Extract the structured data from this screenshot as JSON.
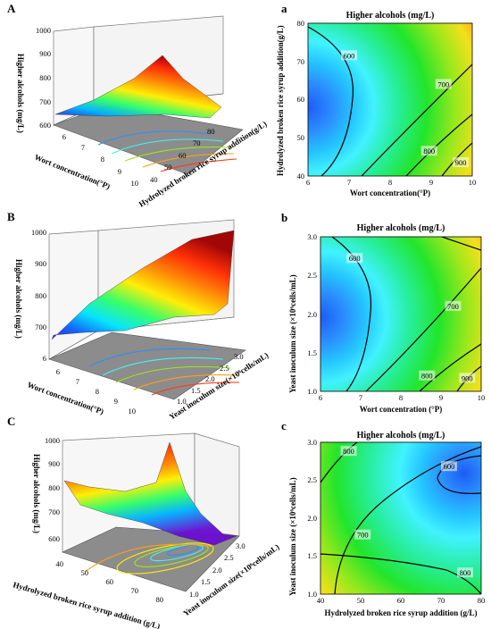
{
  "panel_letters": [
    "A",
    "a",
    "B",
    "b",
    "C",
    "c"
  ],
  "colors": {
    "surface_scale": [
      "#2a1bd6",
      "#0b63ff",
      "#00b3ff",
      "#00e5ff",
      "#33ff66",
      "#ccff00",
      "#ffee00",
      "#ff8800",
      "#ff2a00",
      "#c00000"
    ],
    "contour_scale": [
      "#1d5cf2",
      "#2b8eff",
      "#24c4ff",
      "#41f2ff",
      "#27ee9a",
      "#22e52b",
      "#9ae81c",
      "#f3e01c",
      "#ff9e1a",
      "#ff3a14"
    ],
    "floor": "#8c8c8c",
    "contour_line": "#000000"
  },
  "chart_data": [
    {
      "panel": "A",
      "type": "surface",
      "x": {
        "label": "Wort concentration(°P)",
        "range": [
          6,
          10
        ],
        "ticks": [
          6,
          7,
          8,
          9,
          10
        ]
      },
      "y": {
        "label": "Hydrolyzed broken rice syrup addition(g/L)",
        "range": [
          40,
          80
        ],
        "ticks": [
          40,
          50,
          60,
          70,
          80
        ]
      },
      "z": {
        "label": "Higher alcohols (mg/L)",
        "range": [
          600,
          1000
        ],
        "ticks": [
          600,
          700,
          800,
          900,
          1000
        ]
      }
    },
    {
      "panel": "a",
      "type": "contour",
      "title": "Higher alcohols (mg/L)",
      "xlabel": "Wort concentration(°P)",
      "ylabel": "Hydrolyzed broken rice syrup addition(g/L)",
      "xlim": [
        6,
        10
      ],
      "ylim": [
        40,
        80
      ],
      "xticks": [
        "6",
        "7",
        "8",
        "9",
        "10"
      ],
      "yticks": [
        "40",
        "50",
        "60",
        "70",
        "80"
      ],
      "levels": [
        600,
        700,
        800,
        900
      ],
      "contour_labels": [
        {
          "text": "600",
          "x": 7.0,
          "y": 71.5
        },
        {
          "text": "700",
          "x": 9.3,
          "y": 64
        },
        {
          "text": "800",
          "x": 8.95,
          "y": 46.5
        },
        {
          "text": "900",
          "x": 9.72,
          "y": 43.5
        }
      ]
    },
    {
      "panel": "B",
      "type": "surface",
      "x": {
        "label": "Wort concentration(°P)",
        "range": [
          6,
          10
        ],
        "ticks": [
          6,
          7,
          8,
          9,
          10
        ]
      },
      "y": {
        "label": "Yeast inoculum size(×10⁶cells/mL)",
        "range": [
          1.0,
          3.0
        ],
        "ticks": [
          1.0,
          1.5,
          2.0,
          2.5,
          3.0
        ]
      },
      "z": {
        "label": "Higher alcohols (mg/L)",
        "range": [
          600,
          1000
        ],
        "ticks": [
          600,
          700,
          800,
          900,
          1000
        ]
      }
    },
    {
      "panel": "b",
      "type": "contour",
      "title": "Higher alcohols (mg/L)",
      "xlabel": "Wort concentration (°P)",
      "ylabel": "Yeast inoculum size (×10⁶cells/mL)",
      "xlim": [
        6,
        10
      ],
      "ylim": [
        1.0,
        3.0
      ],
      "xticks": [
        "6",
        "7",
        "8",
        "9",
        "10"
      ],
      "yticks": [
        "1.0",
        "1.5",
        "2.0",
        "2.5",
        "3.0"
      ],
      "levels": [
        600,
        700,
        800,
        900
      ],
      "contour_labels": [
        {
          "text": "600",
          "x": 6.85,
          "y": 2.72
        },
        {
          "text": "700",
          "x": 9.3,
          "y": 2.1
        },
        {
          "text": "800",
          "x": 8.65,
          "y": 1.2
        },
        {
          "text": "900",
          "x": 9.65,
          "y": 1.17
        }
      ]
    },
    {
      "panel": "C",
      "type": "surface",
      "x": {
        "label": "Hydrolyzed broken rice syrup addition (g/L)",
        "range": [
          40,
          80
        ],
        "ticks": [
          40,
          50,
          60,
          70,
          80
        ]
      },
      "y": {
        "label": "Yeast inoculum size(×10⁶cells/mL)",
        "range": [
          1.0,
          3.0
        ],
        "ticks": [
          1.0,
          1.5,
          2.0,
          2.5,
          3.0
        ]
      },
      "z": {
        "label": "Higher alcohols (mg/L)",
        "range": [
          600,
          1000
        ],
        "ticks": [
          600,
          700,
          800,
          900,
          1000
        ]
      }
    },
    {
      "panel": "c",
      "type": "contour",
      "title": "Higher alcohols (mg/L)",
      "xlabel": "Hydrolyzed broken rice syrup addition (g/L)",
      "ylabel": "Yeast inoculum size (×10⁶cells/mL)",
      "xlim": [
        40,
        80
      ],
      "ylim": [
        1.0,
        3.0
      ],
      "xticks": [
        "40",
        "50",
        "60",
        "70",
        "80"
      ],
      "yticks": [
        "1.0",
        "1.5",
        "2.0",
        "2.5",
        "3.0"
      ],
      "levels": [
        600,
        700,
        800
      ],
      "contour_labels": [
        {
          "text": "800",
          "x": 47,
          "y": 2.88
        },
        {
          "text": "600",
          "x": 72,
          "y": 2.68
        },
        {
          "text": "700",
          "x": 50.5,
          "y": 1.78
        },
        {
          "text": "800",
          "x": 76,
          "y": 1.28
        }
      ]
    }
  ]
}
